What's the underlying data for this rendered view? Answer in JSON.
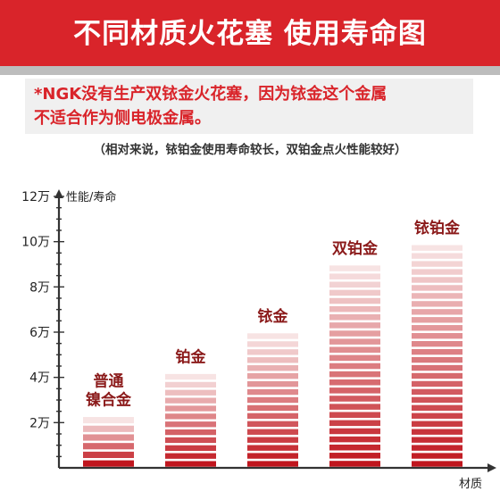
{
  "header": {
    "title": "不同材质火花塞 使用寿命图"
  },
  "note": {
    "line1": "*NGK没有生产双铱金火花塞，因为铱金这个金属",
    "line2": "不适合作为侧电极金属。"
  },
  "subnote": "（相对来说，铱铂金使用寿命较长，双铂金点火性能较好）",
  "colors": {
    "accent": "#d9242a",
    "bar_dark": "#c0161e",
    "bar_light": "#f7e3e3",
    "label": "#8b1a1a"
  },
  "chart_data": {
    "type": "bar",
    "categories": [
      {
        "lines": [
          "普通",
          "镍合金"
        ]
      },
      {
        "lines": [
          "铂金"
        ]
      },
      {
        "lines": [
          "铱金"
        ]
      },
      {
        "lines": [
          "双铂金"
        ]
      },
      {
        "lines": [
          "铱铂金"
        ]
      }
    ],
    "values": [
      23000,
      42000,
      60000,
      90000,
      99000
    ],
    "ylabel": "性能/寿命",
    "xlabel": "材质",
    "ylim": [
      0,
      120000
    ],
    "yticks": [
      {
        "value": 20000,
        "label": "2万"
      },
      {
        "value": 40000,
        "label": "4万"
      },
      {
        "value": 60000,
        "label": "6万"
      },
      {
        "value": 80000,
        "label": "8万"
      },
      {
        "value": 100000,
        "label": "10万"
      },
      {
        "value": 120000,
        "label": "12万"
      }
    ],
    "minor_ticks_per_interval": 4,
    "grid": false
  }
}
